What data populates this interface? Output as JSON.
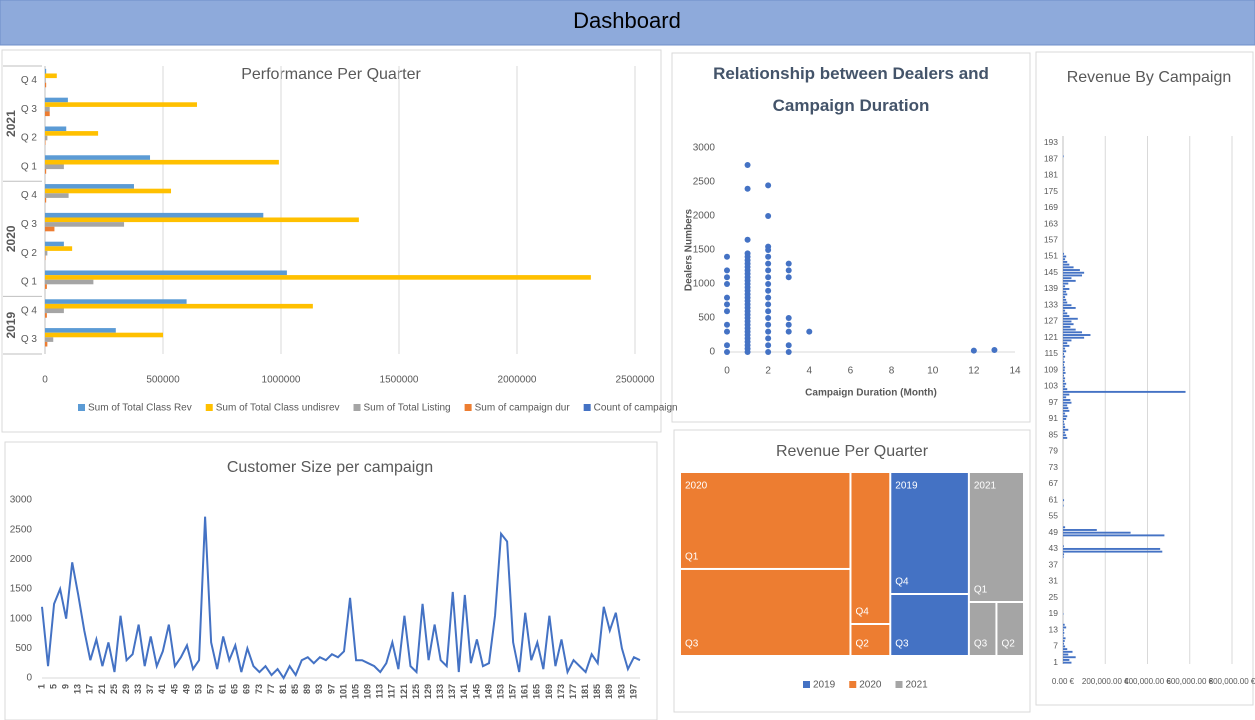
{
  "header": {
    "title": "Dashboard"
  },
  "chart_data": [
    {
      "type": "bar",
      "title": "Performance Per Quarter",
      "groups": [
        {
          "name": "2019",
          "categories": [
            "Q 3",
            "Q 4"
          ]
        },
        {
          "name": "2020",
          "categories": [
            "Q 1",
            "Q 2",
            "Q 3",
            "Q 4"
          ]
        },
        {
          "name": "2021",
          "categories": [
            "Q 1",
            "Q 2",
            "Q 3",
            "Q 4"
          ]
        }
      ],
      "series": [
        {
          "name": "Sum of Total Class Rev",
          "color": "#5b9bd5",
          "values": [
            300000,
            600000,
            1025000,
            80000,
            925000,
            377000,
            445000,
            90000,
            97000,
            5000
          ]
        },
        {
          "name": "Sum of Total Class undisrev",
          "color": "#ffc000",
          "values": [
            500000,
            1135000,
            2313000,
            115000,
            1330000,
            534000,
            991000,
            225000,
            644000,
            50000
          ]
        },
        {
          "name": "Sum of Total Listing",
          "color": "#a5a5a5",
          "values": [
            35000,
            80000,
            205000,
            10000,
            335000,
            100000,
            80000,
            10000,
            20000,
            3000
          ]
        },
        {
          "name": "Sum of campaign dur",
          "color": "#ed7d31",
          "values": [
            10000,
            8000,
            8000,
            2000,
            40000,
            5000,
            5000,
            2000,
            20000,
            5000
          ]
        },
        {
          "name": "Count of campaign",
          "color": "#4472c4",
          "values": [
            40,
            30,
            60,
            10,
            50,
            20,
            30,
            10,
            30,
            10
          ]
        }
      ],
      "xlim": [
        0,
        2500000
      ],
      "xticks": [
        0,
        500000,
        1000000,
        1500000,
        2000000,
        2500000
      ],
      "grid": true,
      "legend": "bottom"
    },
    {
      "type": "scatter",
      "title": "Relationship between Dealers and Campaign Duration",
      "x_label": "Campaign Duration (Month)",
      "y_label": "Dealers Numbers",
      "color": "#4472c4",
      "x": [
        0,
        0,
        0,
        0,
        0,
        0,
        0,
        0,
        0,
        0,
        0,
        1,
        1,
        1,
        1,
        1,
        1,
        1,
        1,
        1,
        1,
        1,
        1,
        1,
        1,
        1,
        1,
        1,
        1,
        1,
        1,
        1,
        1,
        1,
        1,
        1,
        1,
        1,
        1,
        1,
        1,
        1,
        1,
        1,
        2,
        2,
        2,
        2,
        2,
        2,
        2,
        2,
        2,
        2,
        2,
        2,
        2,
        2,
        2,
        2,
        2,
        2,
        2,
        3,
        3,
        3,
        3,
        3,
        3,
        3,
        3,
        4,
        12,
        13
      ],
      "values": [
        0,
        100,
        300,
        400,
        600,
        700,
        800,
        1000,
        1100,
        1200,
        1400,
        0,
        50,
        100,
        150,
        200,
        250,
        300,
        350,
        400,
        450,
        500,
        550,
        600,
        650,
        700,
        750,
        800,
        850,
        900,
        950,
        1000,
        1050,
        1100,
        1150,
        1200,
        1250,
        1300,
        1350,
        1400,
        1450,
        1650,
        2400,
        2750,
        0,
        100,
        200,
        300,
        400,
        500,
        600,
        700,
        800,
        900,
        1000,
        1100,
        1200,
        1300,
        1400,
        1500,
        1550,
        2000,
        2450,
        0,
        100,
        300,
        400,
        500,
        1100,
        1200,
        1300,
        300,
        20,
        30
      ],
      "xlim": [
        0,
        14
      ],
      "xticks": [
        0,
        2,
        4,
        6,
        8,
        10,
        12,
        14
      ],
      "ylim": [
        0,
        3000
      ],
      "yticks": [
        0,
        500,
        1000,
        1500,
        2000,
        2500,
        3000
      ],
      "grid": false
    },
    {
      "type": "line",
      "title": "Customer Size per campaign",
      "color": "#4472c4",
      "x": [
        1,
        3,
        5,
        7,
        9,
        11,
        13,
        15,
        17,
        19,
        21,
        23,
        25,
        27,
        29,
        31,
        33,
        35,
        37,
        39,
        41,
        43,
        45,
        47,
        49,
        51,
        53,
        55,
        57,
        59,
        61,
        63,
        65,
        67,
        69,
        71,
        73,
        75,
        77,
        79,
        81,
        83,
        85,
        87,
        89,
        91,
        93,
        95,
        97,
        99,
        101,
        103,
        105,
        107,
        109,
        111,
        113,
        115,
        117,
        119,
        121,
        123,
        125,
        127,
        129,
        131,
        133,
        135,
        137,
        139,
        141,
        143,
        145,
        147,
        149,
        151,
        153,
        155,
        157,
        159,
        161,
        163,
        165,
        167,
        169,
        171,
        173,
        175,
        177,
        179,
        181,
        183,
        185,
        187,
        189,
        191,
        193,
        195,
        197,
        199
      ],
      "values": [
        1200,
        200,
        1250,
        1500,
        1000,
        1950,
        1400,
        800,
        300,
        650,
        200,
        600,
        100,
        1050,
        300,
        400,
        900,
        200,
        700,
        200,
        450,
        900,
        200,
        350,
        550,
        150,
        300,
        2720,
        600,
        150,
        700,
        300,
        550,
        100,
        500,
        200,
        100,
        200,
        50,
        150,
        0,
        200,
        50,
        300,
        350,
        250,
        350,
        300,
        400,
        350,
        450,
        1350,
        300,
        300,
        250,
        200,
        100,
        250,
        600,
        150,
        1050,
        200,
        100,
        1250,
        300,
        900,
        300,
        200,
        1450,
        100,
        1400,
        250,
        650,
        200,
        250,
        1050,
        2430,
        2300,
        600,
        100,
        1100,
        300,
        600,
        150,
        1050,
        200,
        650,
        100,
        300,
        200,
        100,
        400,
        250,
        1200,
        800,
        1100,
        500,
        150,
        350,
        300
      ],
      "xlim": [
        1,
        199
      ],
      "xticks": [
        1,
        5,
        9,
        13,
        17,
        21,
        25,
        29,
        33,
        37,
        41,
        45,
        49,
        53,
        57,
        61,
        65,
        69,
        73,
        77,
        81,
        85,
        89,
        93,
        97,
        101,
        105,
        109,
        113,
        117,
        121,
        125,
        129,
        133,
        137,
        141,
        145,
        149,
        153,
        157,
        161,
        165,
        169,
        173,
        177,
        181,
        185,
        189,
        193,
        197
      ],
      "ylim": [
        0,
        3000
      ],
      "yticks": [
        0,
        500,
        1000,
        1500,
        2000,
        2500,
        3000
      ],
      "grid": false
    },
    {
      "type": "treemap",
      "title": "Revenue Per Quarter",
      "series": [
        {
          "name": "2019",
          "color": "#4472c4",
          "categories": [
            "Q4",
            "Q3"
          ],
          "values": [
            9394,
            4774
          ]
        },
        {
          "name": "2020",
          "color": "#ed7d31",
          "categories": [
            "Q1",
            "Q3",
            "Q4",
            "Q2"
          ],
          "values": [
            16192,
            14536,
            5928,
            1248
          ]
        },
        {
          "name": "2021",
          "color": "#a5a5a5",
          "categories": [
            "Q1",
            "Q3",
            "Q2"
          ],
          "values": [
            7020,
            1458,
            1458
          ]
        }
      ],
      "legend": "bottom"
    },
    {
      "type": "bar",
      "title": "Revenue By Campaign",
      "color": "#4472c4",
      "categories": [
        "1",
        null,
        null,
        null,
        null,
        null,
        "7",
        null,
        null,
        null,
        null,
        null,
        "13",
        null,
        null,
        null,
        null,
        null,
        "19",
        null,
        null,
        null,
        null,
        null,
        "25",
        null,
        null,
        null,
        null,
        null,
        "31",
        null,
        null,
        null,
        null,
        null,
        "37",
        null,
        null,
        null,
        null,
        null,
        "43",
        null,
        null,
        null,
        null,
        null,
        "49",
        null,
        null,
        null,
        null,
        null,
        "55",
        null,
        null,
        null,
        null,
        null,
        "61",
        null,
        null,
        null,
        null,
        null,
        "67",
        null,
        null,
        null,
        null,
        null,
        "73",
        null,
        null,
        null,
        null,
        null,
        "79",
        null,
        null,
        null,
        null,
        null,
        "85",
        null,
        null,
        null,
        null,
        null,
        "91",
        null,
        null,
        null,
        null,
        null,
        "97",
        null,
        null,
        null,
        null,
        null,
        "103",
        null,
        null,
        null,
        null,
        null,
        "109",
        null,
        null,
        null,
        null,
        null,
        "115",
        null,
        null,
        null,
        null,
        null,
        "121",
        null,
        null,
        null,
        null,
        null,
        "127",
        null,
        null,
        null,
        null,
        null,
        "133",
        null,
        null,
        null,
        null,
        null,
        "139",
        null,
        null,
        null,
        null,
        null,
        "145",
        null,
        null,
        null,
        null,
        null,
        "151",
        null,
        null,
        null,
        null,
        null,
        "157",
        null,
        null,
        null,
        null,
        null,
        "163",
        null,
        null,
        null,
        null,
        null,
        "169",
        null,
        null,
        null,
        null,
        null,
        "175",
        null,
        null,
        null,
        null,
        null,
        "181",
        null,
        null,
        null,
        null,
        null,
        "187",
        null,
        null,
        null,
        null,
        null,
        "193",
        null,
        null
      ],
      "values": [
        40000,
        30000,
        60000,
        25000,
        45000,
        20000,
        10000,
        5000,
        8000,
        12000,
        3000,
        6000,
        4000,
        15000,
        8000,
        0,
        0,
        0,
        2000,
        0,
        0,
        0,
        0,
        0,
        0,
        0,
        0,
        0,
        0,
        0,
        0,
        0,
        0,
        0,
        0,
        0,
        0,
        0,
        0,
        3000,
        5000,
        470000,
        460000,
        4000,
        0,
        0,
        0,
        480000,
        320000,
        160000,
        10000,
        0,
        0,
        0,
        0,
        0,
        0,
        0,
        3000,
        0,
        5000,
        0,
        0,
        0,
        0,
        0,
        0,
        0,
        0,
        0,
        0,
        0,
        0,
        0,
        0,
        0,
        0,
        0,
        0,
        0,
        0,
        0,
        0,
        20000,
        15000,
        10000,
        25000,
        10000,
        8000,
        5000,
        15000,
        20000,
        10000,
        30000,
        25000,
        20000,
        40000,
        35000,
        15000,
        30000,
        580000,
        20000,
        10000,
        15000,
        8000,
        10000,
        5000,
        12000,
        8000,
        10000,
        5000,
        8000,
        3000,
        10000,
        5000,
        15000,
        10000,
        30000,
        20000,
        40000,
        100000,
        130000,
        90000,
        60000,
        35000,
        50000,
        40000,
        70000,
        30000,
        20000,
        10000,
        60000,
        40000,
        20000,
        15000,
        10000,
        20000,
        15000,
        30000,
        10000,
        25000,
        60000,
        40000,
        90000,
        100000,
        80000,
        50000,
        30000,
        20000,
        10000,
        15000,
        5000,
        0,
        0,
        0,
        0,
        0,
        0,
        0,
        0,
        0,
        0,
        0,
        0,
        0,
        0,
        0,
        0,
        0,
        0,
        0,
        0,
        0,
        0,
        0,
        0,
        0,
        0,
        0,
        0,
        0,
        0,
        0,
        0,
        0,
        0,
        0,
        3000,
        0,
        0,
        0,
        0,
        0,
        0,
        0
      ],
      "xlim": [
        0,
        800000
      ],
      "xticks": [
        {
          "value": 0,
          "label": "0.00 €"
        },
        {
          "value": 200000,
          "label": "200,000.00 €"
        },
        {
          "value": 400000,
          "label": "400,000.00 €"
        },
        {
          "value": 600000,
          "label": "600,000.00 €"
        },
        {
          "value": 800000,
          "label": "800,000.00 €"
        }
      ],
      "grid": true
    }
  ]
}
